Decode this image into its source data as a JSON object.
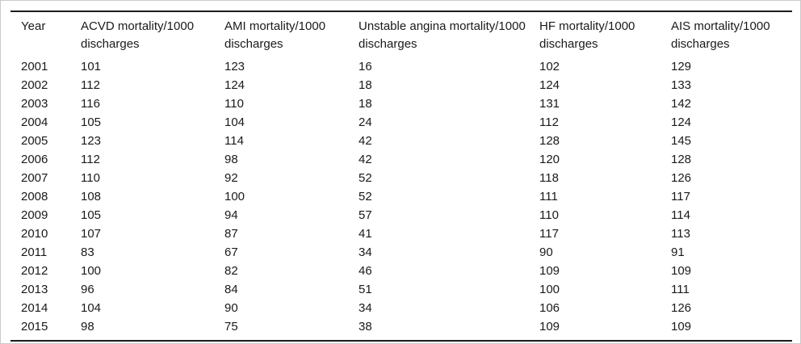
{
  "table": {
    "columns": [
      "Year",
      "ACVD mortality/1000 discharges",
      "AMI mortality/1000 discharges",
      "Unstable angina mortality/1000 discharges",
      "HF mortality/1000 discharges",
      "AIS mortality/1000 discharges"
    ],
    "rows": [
      [
        "2001",
        "101",
        "123",
        "16",
        "102",
        "129"
      ],
      [
        "2002",
        "112",
        "124",
        "18",
        "124",
        "133"
      ],
      [
        "2003",
        "116",
        "110",
        "18",
        "131",
        "142"
      ],
      [
        "2004",
        "105",
        "104",
        "24",
        "112",
        "124"
      ],
      [
        "2005",
        "123",
        "114",
        "42",
        "128",
        "145"
      ],
      [
        "2006",
        "112",
        "98",
        "42",
        "120",
        "128"
      ],
      [
        "2007",
        "110",
        "92",
        "52",
        "118",
        "126"
      ],
      [
        "2008",
        "108",
        "100",
        "52",
        "111",
        "117"
      ],
      [
        "2009",
        "105",
        "94",
        "57",
        "110",
        "114"
      ],
      [
        "2010",
        "107",
        "87",
        "41",
        "117",
        "113"
      ],
      [
        "2011",
        "83",
        "67",
        "34",
        "90",
        "91"
      ],
      [
        "2012",
        "100",
        "82",
        "46",
        "109",
        "109"
      ],
      [
        "2013",
        "96",
        "84",
        "51",
        "100",
        "111"
      ],
      [
        "2014",
        "104",
        "90",
        "34",
        "106",
        "126"
      ],
      [
        "2015",
        "98",
        "75",
        "38",
        "109",
        "109"
      ]
    ]
  },
  "colors": {
    "text": "#1a1a1a",
    "rule": "#1c1c1c",
    "frame": "#cacaca",
    "background": "#ffffff"
  }
}
